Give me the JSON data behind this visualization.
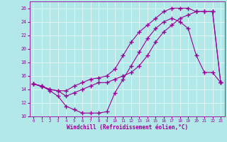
{
  "xlabel": "Windchill (Refroidissement éolien,°C)",
  "line_color": "#990099",
  "bg_color": "#b3e8e8",
  "xlim": [
    -0.5,
    23.5
  ],
  "ylim": [
    10,
    27
  ],
  "xticks": [
    0,
    1,
    2,
    3,
    4,
    5,
    6,
    7,
    8,
    9,
    10,
    11,
    12,
    13,
    14,
    15,
    16,
    17,
    18,
    19,
    20,
    21,
    22,
    23
  ],
  "yticks": [
    10,
    12,
    14,
    16,
    18,
    20,
    22,
    24,
    26
  ],
  "line1_x": [
    0,
    1,
    2,
    3,
    4,
    5,
    6,
    7,
    8,
    9,
    10,
    11,
    12,
    13,
    14,
    15,
    16,
    17,
    18,
    19,
    20,
    21,
    22,
    23
  ],
  "line1_y": [
    14.8,
    14.5,
    14.0,
    13.8,
    13.0,
    13.5,
    14.0,
    14.5,
    15.0,
    15.0,
    15.5,
    16.0,
    16.5,
    17.5,
    19.0,
    21.0,
    22.5,
    23.5,
    24.5,
    25.0,
    25.5,
    25.5,
    25.5,
    15.0
  ],
  "line2_x": [
    0,
    1,
    2,
    3,
    4,
    5,
    6,
    7,
    8,
    9,
    10,
    11,
    12,
    13,
    14,
    15,
    16,
    17,
    18,
    19,
    20,
    21,
    22,
    23
  ],
  "line2_y": [
    14.8,
    14.4,
    14.0,
    13.8,
    13.8,
    14.5,
    15.0,
    15.5,
    15.7,
    16.0,
    17.0,
    19.0,
    21.0,
    22.5,
    23.5,
    24.5,
    25.5,
    26.0,
    26.0,
    26.0,
    25.5,
    25.5,
    25.5,
    15.0
  ],
  "line3_x": [
    0,
    1,
    2,
    3,
    4,
    5,
    6,
    7,
    8,
    9,
    10,
    11,
    12,
    13,
    14,
    15,
    16,
    17,
    18,
    19,
    20,
    21,
    22,
    23
  ],
  "line3_y": [
    14.8,
    14.5,
    13.8,
    13.0,
    11.5,
    11.0,
    10.5,
    10.5,
    10.5,
    10.7,
    13.5,
    15.5,
    17.5,
    19.5,
    21.5,
    23.0,
    24.0,
    24.5,
    24.0,
    23.0,
    19.0,
    16.5,
    16.5,
    15.0
  ]
}
